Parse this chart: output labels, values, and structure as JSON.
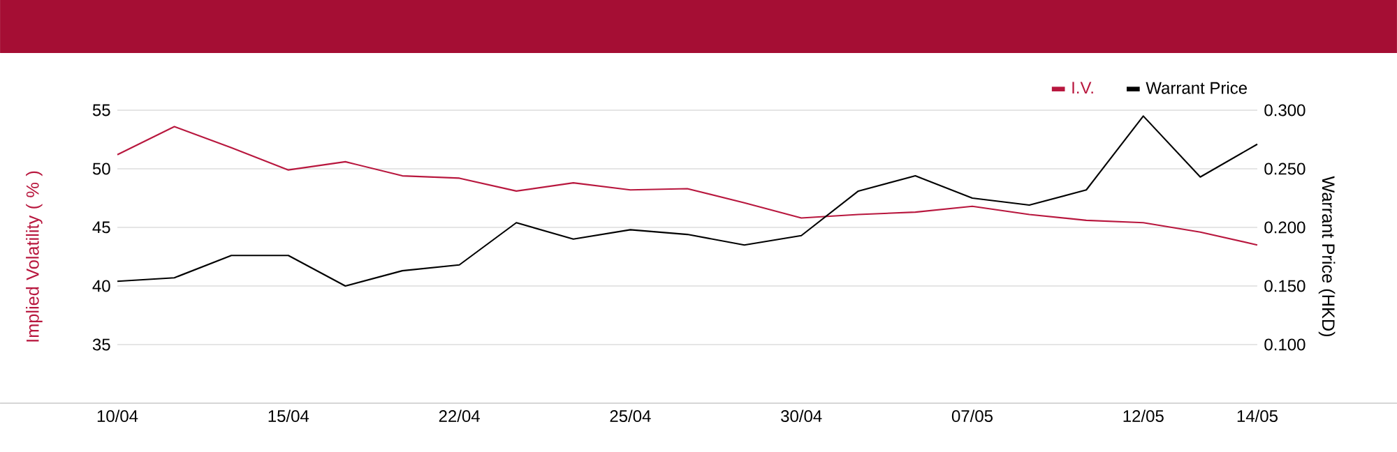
{
  "chart_data": {
    "type": "line",
    "categories": [
      "10/04",
      null,
      null,
      "15/04",
      null,
      null,
      "22/04",
      null,
      null,
      "25/04",
      null,
      null,
      "30/04",
      null,
      null,
      "07/05",
      null,
      null,
      "12/05",
      null,
      "14/05"
    ],
    "series": [
      {
        "name": "I.V.",
        "color": "#b8173e",
        "values": [
          51.2,
          53.6,
          51.8,
          49.9,
          50.6,
          49.4,
          49.2,
          48.1,
          48.8,
          48.2,
          48.3,
          47.1,
          45.8,
          46.1,
          46.3,
          46.8,
          46.1,
          45.6,
          45.4,
          44.6,
          43.5
        ]
      },
      {
        "name": "Warrant Price",
        "color": "#000000",
        "axis": "y2",
        "values": [
          0.154,
          0.157,
          0.176,
          0.176,
          0.15,
          0.163,
          0.168,
          0.204,
          0.19,
          0.198,
          0.194,
          0.185,
          0.193,
          0.231,
          0.244,
          0.225,
          0.219,
          0.232,
          0.295,
          0.243,
          0.271
        ]
      }
    ],
    "ylabel": "Implied Volatility ( % )",
    "y2label": "Warrant Price (HKD)",
    "ylim": [
      30,
      55
    ],
    "yticks": [
      35,
      40,
      45,
      50,
      55
    ],
    "y2lim": [
      0.05,
      0.3
    ],
    "y2ticks": [
      {
        "value": 0.1,
        "label": "0.100"
      },
      {
        "value": 0.15,
        "label": "0.150"
      },
      {
        "value": 0.2,
        "label": "0.200"
      },
      {
        "value": 0.25,
        "label": "0.250"
      },
      {
        "value": 0.3,
        "label": "0.300"
      }
    ],
    "grid": "y",
    "legend": "top right",
    "line_style": "solid"
  }
}
